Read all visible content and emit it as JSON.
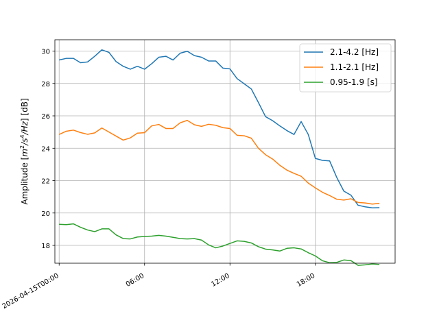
{
  "chart_data": {
    "type": "line",
    "title": "",
    "xlabel": "",
    "ylabel": "Amplitude [m²/s⁴/Hz] [dB]",
    "ylabel_parts": {
      "prefix": "Amplitude [",
      "m": "m",
      "two": "2",
      "slash1": "/s",
      "four": "4",
      "slash2": "/Hz",
      "suffix": "] [dB]"
    },
    "xlim_hours": [
      -0.3,
      23.6
    ],
    "ylim": [
      16.9,
      30.7
    ],
    "yticks": [
      18,
      20,
      22,
      24,
      26,
      28,
      30
    ],
    "xticks": [
      {
        "hour": 0,
        "label": "2026-04-15T00:00"
      },
      {
        "hour": 6,
        "label": "06:00"
      },
      {
        "hour": 12,
        "label": "12:00"
      },
      {
        "hour": 18,
        "label": "18:00"
      }
    ],
    "grid": true,
    "legend_position": "top-right",
    "series": [
      {
        "name": "2.1-4.2 [Hz]",
        "color": "#1f77b4",
        "x": [
          0,
          0.5,
          1,
          1.5,
          2,
          2.5,
          3,
          3.5,
          4,
          4.5,
          5,
          5.5,
          6,
          6.5,
          7,
          7.5,
          8,
          8.5,
          9,
          9.5,
          10,
          10.5,
          11,
          11.5,
          12,
          12.5,
          13,
          13.5,
          14,
          14.5,
          15,
          15.5,
          16,
          16.5,
          17,
          17.5,
          18,
          18.5,
          19,
          19.5,
          20,
          20.5,
          21,
          21.5,
          22,
          22.5
        ],
        "values": [
          29.45,
          29.55,
          29.55,
          29.28,
          29.33,
          29.68,
          30.08,
          29.92,
          29.35,
          29.06,
          28.88,
          29.06,
          28.88,
          29.22,
          29.62,
          29.68,
          29.45,
          29.87,
          29.99,
          29.72,
          29.62,
          29.39,
          29.39,
          28.95,
          28.9,
          28.3,
          27.98,
          27.66,
          26.82,
          25.95,
          25.7,
          25.38,
          25.09,
          24.85,
          25.65,
          24.85,
          23.37,
          23.25,
          23.22,
          22.2,
          21.35,
          21.1,
          20.48,
          20.38,
          20.32,
          20.33
        ]
      },
      {
        "name": "1.1-2.1 [Hz]",
        "color": "#ff7f0e",
        "x": [
          0,
          0.5,
          1,
          1.5,
          2,
          2.5,
          3,
          3.5,
          4,
          4.5,
          5,
          5.5,
          6,
          6.5,
          7,
          7.5,
          8,
          8.5,
          9,
          9.5,
          10,
          10.5,
          11,
          11.5,
          12,
          12.5,
          13,
          13.5,
          14,
          14.5,
          15,
          15.5,
          16,
          16.5,
          17,
          17.5,
          18,
          18.5,
          19,
          19.5,
          20,
          20.5,
          21,
          21.5,
          22,
          22.5
        ],
        "values": [
          24.85,
          25.05,
          25.12,
          24.97,
          24.86,
          24.95,
          25.25,
          25.0,
          24.75,
          24.5,
          24.64,
          24.93,
          24.96,
          25.38,
          25.47,
          25.22,
          25.22,
          25.57,
          25.72,
          25.45,
          25.35,
          25.48,
          25.42,
          25.27,
          25.22,
          24.8,
          24.77,
          24.62,
          24.0,
          23.6,
          23.33,
          22.95,
          22.65,
          22.45,
          22.27,
          21.85,
          21.55,
          21.28,
          21.08,
          20.85,
          20.8,
          20.88,
          20.65,
          20.62,
          20.55,
          20.6
        ]
      },
      {
        "name": "0.95-1.9 [s]",
        "color": "#2ca02c",
        "x": [
          0,
          0.5,
          1,
          1.5,
          2,
          2.5,
          3,
          3.5,
          4,
          4.5,
          5,
          5.5,
          6,
          6.5,
          7,
          7.5,
          8,
          8.5,
          9,
          9.5,
          10,
          10.5,
          11,
          11.5,
          12,
          12.5,
          13,
          13.5,
          14,
          14.5,
          15,
          15.5,
          16,
          16.5,
          17,
          17.5,
          18,
          18.5,
          19,
          19.5,
          20,
          20.5,
          21,
          21.5,
          22,
          22.5
        ],
        "values": [
          19.3,
          19.28,
          19.33,
          19.12,
          18.95,
          18.85,
          19.02,
          19.02,
          18.65,
          18.42,
          18.4,
          18.52,
          18.55,
          18.57,
          18.62,
          18.57,
          18.5,
          18.42,
          18.4,
          18.42,
          18.33,
          18.03,
          17.85,
          17.96,
          18.12,
          18.28,
          18.25,
          18.15,
          17.92,
          17.77,
          17.72,
          17.65,
          17.82,
          17.85,
          17.78,
          17.55,
          17.35,
          17.05,
          16.93,
          16.95,
          17.1,
          17.06,
          16.77,
          16.8,
          16.85,
          16.82
        ]
      }
    ]
  }
}
